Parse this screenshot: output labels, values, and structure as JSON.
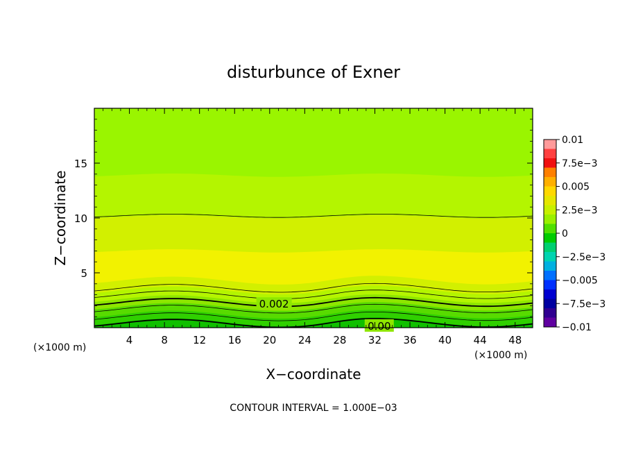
{
  "chart_data": {
    "type": "heatmap",
    "title": "disturbunce of Exner",
    "xlabel": "X−coordinate",
    "ylabel": "Z−coordinate",
    "x_unit": "(×1000 m)",
    "x_unit_right": "(×1000 m)",
    "xlim": [
      0,
      50
    ],
    "ylim": [
      0,
      20
    ],
    "x_ticks": [
      4,
      8,
      12,
      16,
      20,
      24,
      28,
      32,
      36,
      40,
      44,
      48
    ],
    "x_tick_labels": [
      "4",
      "8",
      "12",
      "16",
      "20",
      "24",
      "28",
      "32",
      "36",
      "40",
      "44",
      "48"
    ],
    "y_ticks": [
      5,
      10,
      15
    ],
    "y_tick_labels": [
      "5",
      "10",
      "15"
    ],
    "footer": "CONTOUR INTERVAL = 1.000E−03",
    "contour_labels": [
      {
        "text": "0.002",
        "x": 20.5,
        "z": 2.2
      },
      {
        "text": "0.00",
        "x": 32.5,
        "z": 0.2
      }
    ],
    "colorbar": {
      "labels": [
        "0.01",
        "7.5e−3",
        "0.005",
        "2.5e−3",
        "0",
        "−2.5e−3",
        "−0.005",
        "−7.5e−3",
        "−0.01"
      ],
      "colors": [
        "#ff9a9a",
        "#ff4040",
        "#f01010",
        "#ff8000",
        "#ffb000",
        "#ffd800",
        "#e6e600",
        "#c8f000",
        "#9af000",
        "#50e000",
        "#00cc00",
        "#00d070",
        "#00d4b0",
        "#00b0e0",
        "#0070ff",
        "#0030ff",
        "#0000d0",
        "#0000a0",
        "#300090",
        "#6000a0"
      ]
    },
    "bands": [
      {
        "color": "#9af500",
        "z": 20.0
      },
      {
        "color": "#b4f500",
        "z": 13.9
      },
      {
        "color": "#d2f000",
        "z": 10.1
      },
      {
        "color": "#f2f200",
        "z": 7.0
      },
      {
        "color": "#d2f000",
        "z": 4.3
      },
      {
        "color": "#b4f500",
        "z": 3.4
      },
      {
        "color": "#8ee600",
        "z": 2.6
      },
      {
        "color": "#58db00",
        "z": 1.9
      },
      {
        "color": "#30d000",
        "z": 1.2
      },
      {
        "color": "#10c000",
        "z": 0.5
      }
    ],
    "contour_lines": [
      10.2,
      3.6,
      3.0,
      2.3,
      1.7,
      1.0,
      0.4
    ],
    "bold_contours": [
      2.3,
      0.4
    ]
  }
}
